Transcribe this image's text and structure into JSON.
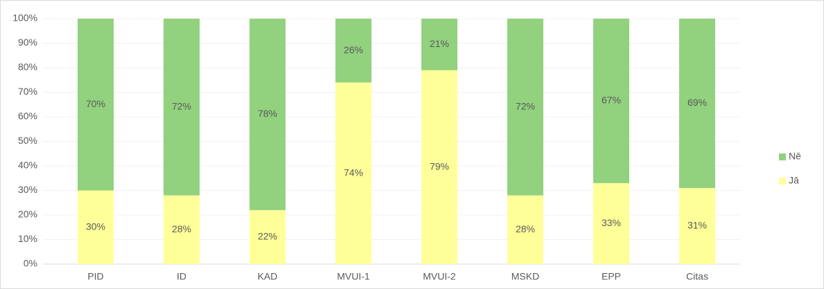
{
  "chart_data": {
    "type": "stacked_bar",
    "categories": [
      "PID",
      "ID",
      "KAD",
      "MVUI-1",
      "MVUI-2",
      "MSKD",
      "EPP",
      "Citas"
    ],
    "series": [
      {
        "name": "Jā",
        "color": "#ffff99",
        "values": [
          30,
          28,
          22,
          74,
          79,
          28,
          33,
          31
        ],
        "value_labels": [
          "30%",
          "28%",
          "22%",
          "74%",
          "79%",
          "28%",
          "33%",
          "31%"
        ]
      },
      {
        "name": "Nē",
        "color": "#92d17e",
        "values": [
          70,
          72,
          78,
          26,
          21,
          72,
          67,
          69
        ],
        "value_labels": [
          "70%",
          "72%",
          "78%",
          "26%",
          "21%",
          "72%",
          "67%",
          "69%"
        ]
      }
    ],
    "ylim": [
      0,
      100
    ],
    "yticks": [
      {
        "value": 0,
        "label": "0%"
      },
      {
        "value": 10,
        "label": "10%"
      },
      {
        "value": 20,
        "label": "20%"
      },
      {
        "value": 30,
        "label": "30%"
      },
      {
        "value": 40,
        "label": "40%"
      },
      {
        "value": 50,
        "label": "50%"
      },
      {
        "value": 60,
        "label": "60%"
      },
      {
        "value": 70,
        "label": "70%"
      },
      {
        "value": 80,
        "label": "80%"
      },
      {
        "value": 90,
        "label": "90%"
      },
      {
        "value": 100,
        "label": "100%"
      }
    ],
    "grid": true,
    "legend": "right"
  }
}
